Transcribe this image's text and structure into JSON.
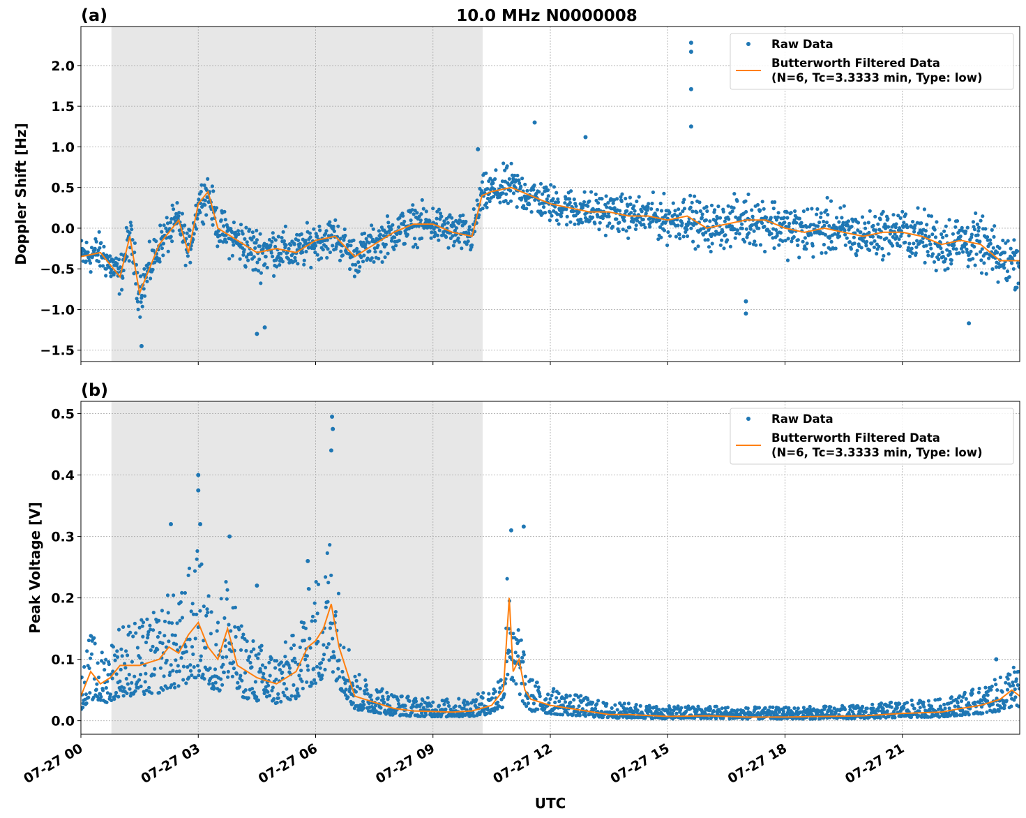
{
  "chart_data": [
    {
      "type": "scatter",
      "panel_label": "(a)",
      "title": "10.0 MHz N0000008",
      "xlabel": "",
      "ylabel": "Doppler Shift [Hz]",
      "xlim_hours_utc": [
        0,
        24
      ],
      "ylim": [
        -1.64,
        2.48
      ],
      "yticks": [
        "−1.5",
        "−1.0",
        "−0.5",
        "0.0",
        "0.5",
        "1.0",
        "1.5",
        "2.0"
      ],
      "ytick_values": [
        -1.5,
        -1.0,
        -0.5,
        0.0,
        0.5,
        1.0,
        1.5,
        2.0
      ],
      "grid": true,
      "legend_placement": "top-right",
      "shaded_interval_hours_utc": [
        0.78,
        10.27
      ],
      "series": [
        {
          "name": "Raw Data",
          "kind": "scatter",
          "color": "#1f77b4",
          "envelope_hours": [
            0,
            0.5,
            1.0,
            1.25,
            1.5,
            2.0,
            2.5,
            2.75,
            3.0,
            3.25,
            3.5,
            4.0,
            4.5,
            5.0,
            5.5,
            6.0,
            6.5,
            7.0,
            7.5,
            8.0,
            8.5,
            9.0,
            9.5,
            10.0,
            10.25,
            10.5,
            11.0,
            11.5,
            12.0,
            12.5,
            13.0,
            13.5,
            14.0,
            14.5,
            15.0,
            15.5,
            16.0,
            16.5,
            17.0,
            17.5,
            18.0,
            18.5,
            19.0,
            19.5,
            20.0,
            20.5,
            21.0,
            21.5,
            22.0,
            22.5,
            23.0,
            23.5,
            24.0
          ],
          "envelope_halfwidth": [
            0.3,
            0.3,
            0.3,
            0.35,
            0.35,
            0.3,
            0.3,
            0.3,
            0.3,
            0.3,
            0.3,
            0.35,
            0.4,
            0.35,
            0.3,
            0.3,
            0.3,
            0.3,
            0.3,
            0.3,
            0.3,
            0.3,
            0.3,
            0.3,
            0.3,
            0.3,
            0.35,
            0.3,
            0.3,
            0.3,
            0.3,
            0.3,
            0.3,
            0.3,
            0.35,
            0.35,
            0.35,
            0.35,
            0.4,
            0.4,
            0.4,
            0.4,
            0.4,
            0.4,
            0.35,
            0.35,
            0.35,
            0.4,
            0.45,
            0.4,
            0.4,
            0.4,
            0.4
          ],
          "outliers": [
            [
              15.6,
              2.28
            ],
            [
              15.6,
              2.17
            ],
            [
              15.6,
              1.71
            ],
            [
              15.6,
              1.25
            ],
            [
              11.6,
              1.3
            ],
            [
              12.9,
              1.12
            ],
            [
              17.0,
              -1.05
            ],
            [
              17.0,
              -0.9
            ],
            [
              4.5,
              -1.3
            ],
            [
              4.7,
              -1.22
            ],
            [
              1.55,
              -1.45
            ],
            [
              22.7,
              -1.17
            ],
            [
              10.15,
              0.97
            ]
          ]
        },
        {
          "name": "Butterworth Filtered Data\n(N=6, Tc=3.3333 min, Type: low)",
          "kind": "line",
          "color": "#ff7f0e",
          "x_hours": [
            0,
            0.5,
            1.0,
            1.25,
            1.5,
            2.0,
            2.5,
            2.75,
            3.0,
            3.25,
            3.5,
            4.0,
            4.5,
            5.0,
            5.5,
            6.0,
            6.5,
            7.0,
            7.5,
            8.0,
            8.5,
            9.0,
            9.5,
            10.0,
            10.25,
            10.5,
            11.0,
            11.5,
            12.0,
            12.5,
            13.0,
            13.5,
            14.0,
            14.5,
            15.0,
            15.5,
            16.0,
            16.5,
            17.0,
            17.5,
            18.0,
            18.5,
            19.0,
            19.5,
            20.0,
            20.5,
            21.0,
            21.5,
            22.0,
            22.5,
            23.0,
            23.5,
            24.0
          ],
          "y": [
            -0.35,
            -0.3,
            -0.6,
            -0.1,
            -0.8,
            -0.2,
            0.1,
            -0.3,
            0.3,
            0.45,
            0.0,
            -0.15,
            -0.3,
            -0.25,
            -0.3,
            -0.15,
            -0.1,
            -0.35,
            -0.2,
            -0.05,
            0.05,
            0.05,
            -0.05,
            -0.1,
            0.4,
            0.45,
            0.5,
            0.4,
            0.3,
            0.25,
            0.2,
            0.2,
            0.15,
            0.15,
            0.1,
            0.15,
            0.0,
            0.05,
            0.1,
            0.1,
            0.0,
            -0.05,
            0.0,
            -0.05,
            -0.1,
            -0.05,
            -0.05,
            -0.1,
            -0.2,
            -0.15,
            -0.2,
            -0.4,
            -0.4
          ]
        }
      ],
      "legend_entries": [
        "Raw Data",
        "Butterworth Filtered Data",
        "(N=6, Tc=3.3333 min, Type: low)"
      ]
    },
    {
      "type": "scatter",
      "panel_label": "(b)",
      "xlabel": "UTC",
      "ylabel": "Peak Voltage [V]",
      "xlim_hours_utc": [
        0,
        24
      ],
      "ylim": [
        -0.022,
        0.52
      ],
      "yticks": [
        "0.0",
        "0.1",
        "0.2",
        "0.3",
        "0.4",
        "0.5"
      ],
      "ytick_values": [
        0.0,
        0.1,
        0.2,
        0.3,
        0.4,
        0.5
      ],
      "xticks": [
        "07-27 00",
        "07-27 03",
        "07-27 06",
        "07-27 09",
        "07-27 12",
        "07-27 15",
        "07-27 18",
        "07-27 21"
      ],
      "xtick_hours": [
        0,
        3,
        6,
        9,
        12,
        15,
        18,
        21
      ],
      "grid": true,
      "legend_placement": "top-right",
      "shaded_interval_hours_utc": [
        0.78,
        10.27
      ],
      "series": [
        {
          "name": "Raw Data",
          "kind": "scatter",
          "color": "#1f77b4",
          "outliers": [
            [
              6.42,
              0.495
            ],
            [
              6.44,
              0.475
            ],
            [
              6.4,
              0.44
            ],
            [
              3.0,
              0.4
            ],
            [
              3.0,
              0.375
            ],
            [
              2.3,
              0.32
            ],
            [
              3.05,
              0.32
            ],
            [
              11.0,
              0.31
            ],
            [
              11.32,
              0.316
            ],
            [
              3.8,
              0.3
            ],
            [
              5.8,
              0.26
            ],
            [
              4.5,
              0.22
            ],
            [
              23.4,
              0.1
            ]
          ]
        },
        {
          "name": "Butterworth Filtered Data\n(N=6, Tc=3.3333 min, Type: low)",
          "kind": "line",
          "color": "#ff7f0e",
          "x_hours": [
            0,
            0.25,
            0.5,
            0.75,
            1.0,
            1.5,
            2.0,
            2.25,
            2.5,
            2.75,
            3.0,
            3.25,
            3.5,
            3.75,
            4.0,
            4.5,
            5.0,
            5.5,
            5.8,
            6.0,
            6.2,
            6.4,
            6.6,
            6.75,
            7.0,
            7.5,
            8.0,
            8.5,
            9.0,
            9.5,
            10.0,
            10.5,
            10.8,
            10.95,
            11.05,
            11.2,
            11.35,
            11.5,
            12.0,
            12.5,
            13.0,
            13.5,
            14.0,
            15.0,
            16.0,
            17.0,
            18.0,
            19.0,
            20.0,
            21.0,
            22.0,
            22.5,
            23.0,
            23.5,
            23.8,
            24.0
          ],
          "y": [
            0.04,
            0.08,
            0.06,
            0.07,
            0.09,
            0.09,
            0.1,
            0.12,
            0.11,
            0.14,
            0.16,
            0.12,
            0.1,
            0.15,
            0.09,
            0.07,
            0.06,
            0.08,
            0.12,
            0.13,
            0.15,
            0.19,
            0.12,
            0.09,
            0.04,
            0.03,
            0.02,
            0.016,
            0.015,
            0.014,
            0.016,
            0.025,
            0.05,
            0.2,
            0.08,
            0.1,
            0.05,
            0.035,
            0.025,
            0.02,
            0.015,
            0.01,
            0.01,
            0.007,
            0.008,
            0.006,
            0.006,
            0.007,
            0.008,
            0.012,
            0.014,
            0.02,
            0.025,
            0.035,
            0.05,
            0.04
          ]
        }
      ],
      "legend_entries": [
        "Raw Data",
        "Butterworth Filtered Data",
        "(N=6, Tc=3.3333 min, Type: low)"
      ]
    }
  ]
}
